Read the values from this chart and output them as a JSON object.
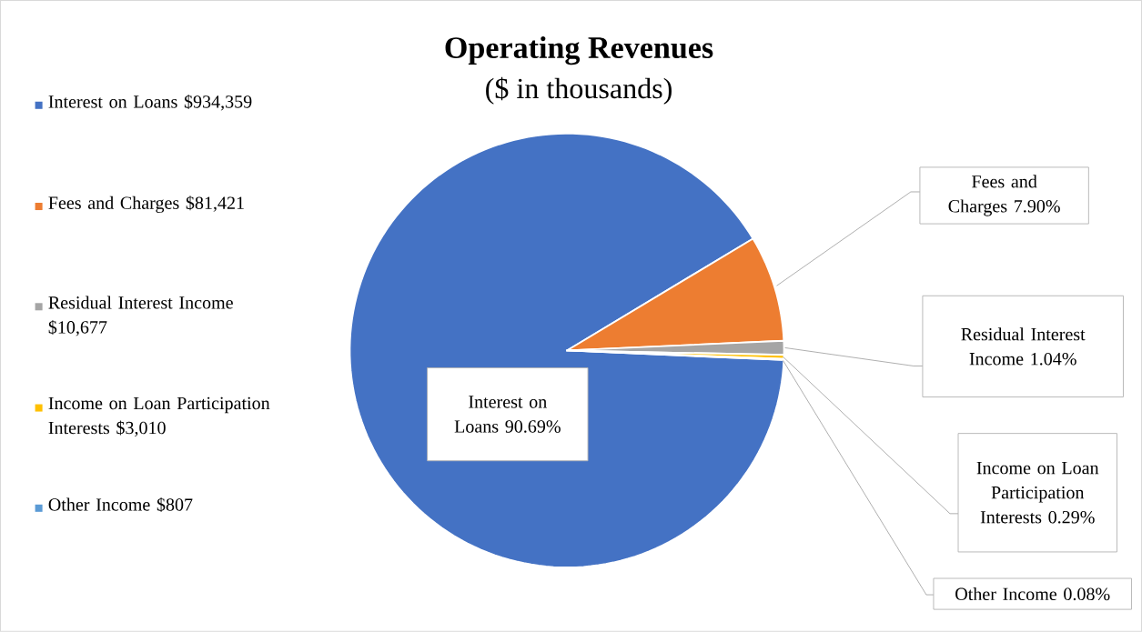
{
  "chart_data": {
    "type": "pie",
    "title": "Operating Revenues",
    "subtitle": "($ in thousands)",
    "categories": [
      "Interest on Loans",
      "Fees and Charges",
      "Residual Interest Income",
      "Income on Loan Participation Interests",
      "Other Income"
    ],
    "values": [
      934359,
      81421,
      10677,
      3010,
      807
    ],
    "colors": [
      "#4472c4",
      "#ed7d31",
      "#a5a5a5",
      "#ffc000",
      "#5b9bd5"
    ],
    "value_labels": [
      "$934,359",
      "$81,421",
      "$10,677",
      "$3,010",
      "$807"
    ],
    "annotations": [
      "90.69%",
      "7.90%",
      "1.04%",
      "0.29%",
      "0.08%"
    ],
    "legend": "left"
  }
}
